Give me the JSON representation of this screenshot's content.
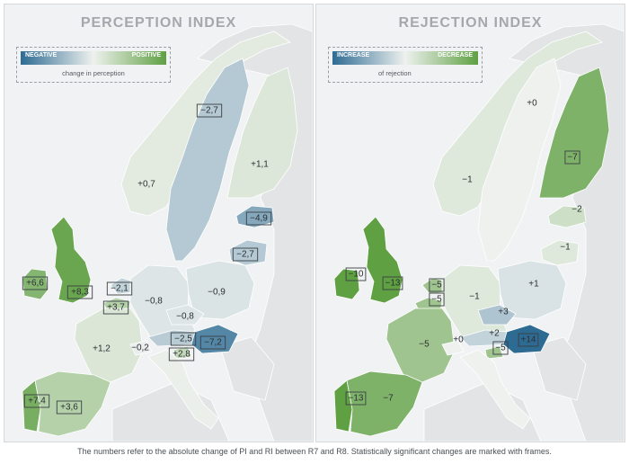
{
  "footnote": "The numbers refer to the absolute change of PI and RI between R7 and R8. Statistically significant changes are marked with frames.",
  "colors": {
    "panel_bg": "#f1f2f3",
    "land_base": "#e2e4e6",
    "scale_negative": "#2e6b93",
    "scale_neutral": "#eef1ee",
    "scale_positive": "#5fa043",
    "frame": "#3a3f44"
  },
  "maps": [
    {
      "id": "perception",
      "title": "PERCEPTION INDEX",
      "legend": {
        "low": "NEGATIVE",
        "high": "POSITIVE",
        "caption": "change in perception"
      },
      "regions": [
        {
          "country": "Norway",
          "label": "+0,7",
          "value": 0.7,
          "framed": false
        },
        {
          "country": "Sweden",
          "label": "−2,7",
          "value": -2.7,
          "framed": true
        },
        {
          "country": "Finland",
          "label": "+1,1",
          "value": 1.1,
          "framed": false
        },
        {
          "country": "Estonia",
          "label": "−4,9",
          "value": -4.9,
          "framed": true
        },
        {
          "country": "Lithuania",
          "label": "−2,7",
          "value": -2.7,
          "framed": true
        },
        {
          "country": "Ireland",
          "label": "+6,6",
          "value": 6.6,
          "framed": true
        },
        {
          "country": "United Kingdom",
          "label": "+8,3",
          "value": 8.3,
          "framed": true
        },
        {
          "country": "Netherlands",
          "label": "−2,1",
          "value": -2.1,
          "framed": true
        },
        {
          "country": "Belgium",
          "label": "+3,7",
          "value": 3.7,
          "framed": true
        },
        {
          "country": "Germany",
          "label": "−0,8",
          "value": -0.8,
          "framed": false
        },
        {
          "country": "Poland",
          "label": "−0,9",
          "value": -0.9,
          "framed": false
        },
        {
          "country": "Czechia",
          "label": "−0,8",
          "value": -0.8,
          "framed": false
        },
        {
          "country": "France",
          "label": "+1,2",
          "value": 1.2,
          "framed": false
        },
        {
          "country": "Switzerland",
          "label": "−0,2",
          "value": -0.2,
          "framed": false
        },
        {
          "country": "Austria",
          "label": "−2,5",
          "value": -2.5,
          "framed": true
        },
        {
          "country": "Slovenia",
          "label": "+2,8",
          "value": 2.8,
          "framed": true
        },
        {
          "country": "Hungary",
          "label": "−7,2",
          "value": -7.2,
          "framed": true
        },
        {
          "country": "Italy",
          "label": "",
          "value": 0.2,
          "framed": false
        },
        {
          "country": "Portugal",
          "label": "+7,4",
          "value": 7.4,
          "framed": true
        },
        {
          "country": "Spain",
          "label": "+3,6",
          "value": 3.6,
          "framed": true
        }
      ]
    },
    {
      "id": "rejection",
      "title": "REJECTION INDEX",
      "legend": {
        "low": "INCREASE",
        "high": "DECREASE",
        "caption": "of rejection"
      },
      "regions": [
        {
          "country": "Norway",
          "label": "−1",
          "value": 1,
          "framed": false
        },
        {
          "country": "Sweden",
          "label": "+0",
          "value": 0,
          "framed": false
        },
        {
          "country": "Finland",
          "label": "−7",
          "value": 7,
          "framed": true
        },
        {
          "country": "Estonia",
          "label": "−2",
          "value": 2,
          "framed": false
        },
        {
          "country": "Lithuania",
          "label": "−1",
          "value": 1,
          "framed": false
        },
        {
          "country": "Ireland",
          "label": "−10",
          "value": 10,
          "framed": true
        },
        {
          "country": "United Kingdom",
          "label": "−13",
          "value": 13,
          "framed": true
        },
        {
          "country": "Netherlands",
          "label": "−5",
          "value": 5,
          "framed": true
        },
        {
          "country": "Belgium",
          "label": "−5",
          "value": 5,
          "framed": true
        },
        {
          "country": "Germany",
          "label": "−1",
          "value": 1,
          "framed": false
        },
        {
          "country": "Poland",
          "label": "+1",
          "value": -1,
          "framed": false
        },
        {
          "country": "Czechia",
          "label": "+3",
          "value": -3,
          "framed": false
        },
        {
          "country": "France",
          "label": "−5",
          "value": 5,
          "framed": false
        },
        {
          "country": "Switzerland",
          "label": "+0",
          "value": 0,
          "framed": false
        },
        {
          "country": "Austria",
          "label": "+2",
          "value": -2,
          "framed": false
        },
        {
          "country": "Slovenia",
          "label": "−5",
          "value": 5,
          "framed": true
        },
        {
          "country": "Hungary",
          "label": "+14",
          "value": -14,
          "framed": true
        },
        {
          "country": "Italy",
          "label": "",
          "value": 0,
          "framed": false
        },
        {
          "country": "Portugal",
          "label": "−13",
          "value": 13,
          "framed": true
        },
        {
          "country": "Spain",
          "label": "−7",
          "value": 7,
          "framed": false
        }
      ]
    }
  ]
}
